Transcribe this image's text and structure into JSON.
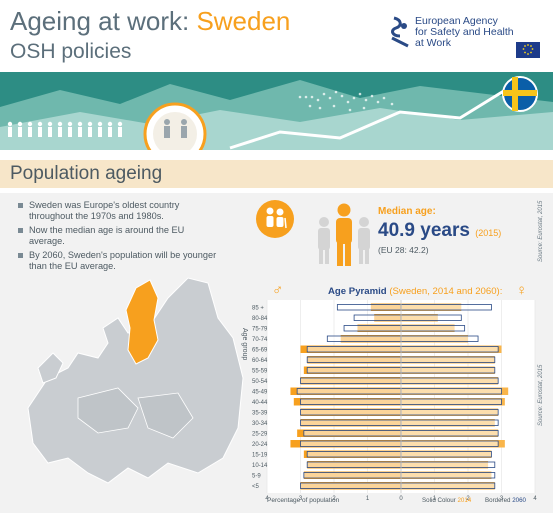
{
  "header": {
    "title_prefix": "Ageing at work: ",
    "title_country": "Sweden",
    "subtitle": "OSH policies",
    "agency_line1": "European Agency",
    "agency_line2": "for Safety and Health",
    "agency_line3": "at Work"
  },
  "section": {
    "title": "Population ageing"
  },
  "bullets": [
    "Sweden was Europe's oldest country throughout the 1970s and 1980s.",
    "Now the median age is around the EU average.",
    "By 2060, Sweden's population will be younger than the EU average."
  ],
  "median": {
    "label": "Median age:",
    "value": "40.9 years",
    "year": "(2015)",
    "eu": "(EU 28: 42.2)",
    "source": "Source: Eurostat, 2015"
  },
  "colors": {
    "accent": "#f7a01e",
    "navy": "#2a4a86",
    "bar_2014": "#f7a01e",
    "bar_2060_border": "#2a4a86"
  },
  "chart_data": {
    "type": "bar",
    "orientation": "horizontal",
    "title": "Age Pyramid",
    "title_note": "(Sweden, 2014 and 2060):",
    "ylabel": "Age group",
    "xlabel": "Percentage of population",
    "source": "Source: Eurostat, 2015",
    "legend_solid_label": "Solid Colour",
    "legend_solid_year": "2014",
    "legend_border_label": "Bordered",
    "legend_border_year": "2060",
    "x_ticks": [
      "4",
      "3",
      "2",
      "1",
      "0",
      "1",
      "2",
      "3",
      "4"
    ],
    "xlim": [
      -4,
      4
    ],
    "categories": [
      "85 +",
      "80-84",
      "75-79",
      "70-74",
      "65-69",
      "60-64",
      "55-59",
      "50-54",
      "45-49",
      "40-44",
      "35-39",
      "30-34",
      "25-29",
      "20-24",
      "15-19",
      "10-14",
      "5-9",
      "<5"
    ],
    "series": [
      {
        "name": "Male 2014",
        "values": [
          0.9,
          0.8,
          1.3,
          1.8,
          3.0,
          2.8,
          2.9,
          3.0,
          3.3,
          3.2,
          3.0,
          3.0,
          3.1,
          3.3,
          2.9,
          2.8,
          2.9,
          3.0
        ]
      },
      {
        "name": "Male 2060",
        "values": [
          1.9,
          1.4,
          1.7,
          2.2,
          2.8,
          2.8,
          2.8,
          3.0,
          3.1,
          3.0,
          3.0,
          3.0,
          2.9,
          3.0,
          2.8,
          2.8,
          2.9,
          3.0
        ]
      },
      {
        "name": "Female 2014",
        "values": [
          1.8,
          1.1,
          1.6,
          2.0,
          3.0,
          2.8,
          2.8,
          2.9,
          3.2,
          3.1,
          2.9,
          2.8,
          2.9,
          3.1,
          2.7,
          2.6,
          2.7,
          2.8
        ]
      },
      {
        "name": "Female 2060",
        "values": [
          2.7,
          1.8,
          1.9,
          2.3,
          2.9,
          2.8,
          2.8,
          2.9,
          3.0,
          3.0,
          2.9,
          2.9,
          2.9,
          2.9,
          2.7,
          2.8,
          2.8,
          2.8
        ]
      }
    ]
  }
}
